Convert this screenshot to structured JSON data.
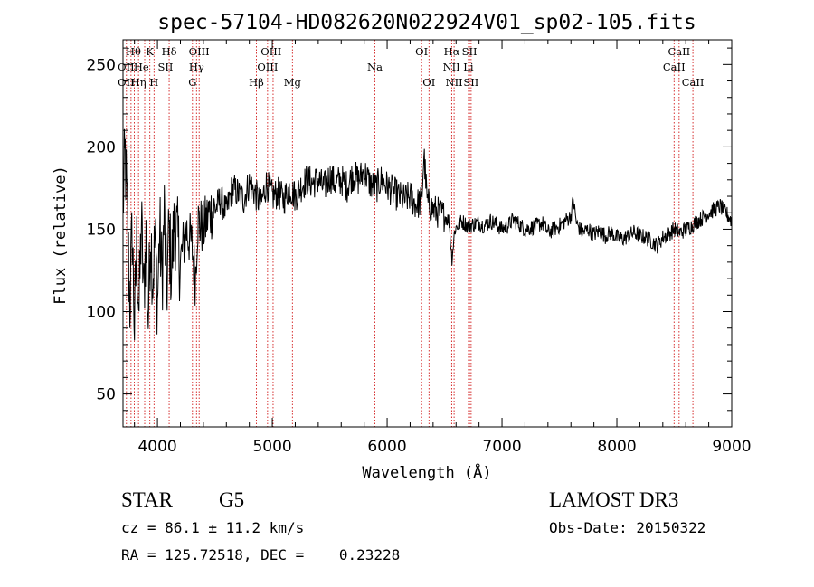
{
  "chart_data": {
    "type": "line",
    "title": "spec-57104-HD082620N022924V01_sp02-105.fits",
    "xlabel": "Wavelength (Å)",
    "ylabel": "Flux (relative)",
    "xlim": [
      3700,
      9000
    ],
    "ylim": [
      30,
      265
    ],
    "xticks": [
      4000,
      5000,
      6000,
      7000,
      8000,
      9000
    ],
    "yticks": [
      50,
      100,
      150,
      200,
      250
    ],
    "x_tick_labels": [
      "4000",
      "5000",
      "6000",
      "7000",
      "8000",
      "9000"
    ],
    "y_tick_labels": [
      "50",
      "100",
      "150",
      "200",
      "250"
    ],
    "grid": false,
    "series": [
      {
        "name": "flux",
        "color": "#000000",
        "points": [
          [
            3700,
            165
          ],
          [
            3720,
            195
          ],
          [
            3740,
            150
          ],
          [
            3760,
            105
          ],
          [
            3780,
            150
          ],
          [
            3800,
            90
          ],
          [
            3820,
            140
          ],
          [
            3840,
            100
          ],
          [
            3860,
            155
          ],
          [
            3880,
            110
          ],
          [
            3900,
            145
          ],
          [
            3920,
            95
          ],
          [
            3940,
            150
          ],
          [
            3960,
            120
          ],
          [
            3980,
            145
          ],
          [
            4000,
            105
          ],
          [
            4020,
            150
          ],
          [
            4040,
            120
          ],
          [
            4060,
            160
          ],
          [
            4080,
            110
          ],
          [
            4100,
            150
          ],
          [
            4120,
            125
          ],
          [
            4150,
            155
          ],
          [
            4200,
            130
          ],
          [
            4250,
            150
          ],
          [
            4300,
            140
          ],
          [
            4330,
            120
          ],
          [
            4350,
            155
          ],
          [
            4400,
            150
          ],
          [
            4450,
            160
          ],
          [
            4500,
            162
          ],
          [
            4550,
            168
          ],
          [
            4600,
            160
          ],
          [
            4650,
            175
          ],
          [
            4700,
            172
          ],
          [
            4750,
            168
          ],
          [
            4800,
            178
          ],
          [
            4850,
            172
          ],
          [
            4900,
            165
          ],
          [
            4950,
            178
          ],
          [
            5000,
            170
          ],
          [
            5050,
            172
          ],
          [
            5100,
            168
          ],
          [
            5150,
            175
          ],
          [
            5200,
            170
          ],
          [
            5250,
            176
          ],
          [
            5300,
            180
          ],
          [
            5350,
            178
          ],
          [
            5400,
            180
          ],
          [
            5450,
            175
          ],
          [
            5500,
            182
          ],
          [
            5550,
            178
          ],
          [
            5600,
            180
          ],
          [
            5650,
            176
          ],
          [
            5700,
            183
          ],
          [
            5750,
            180
          ],
          [
            5800,
            185
          ],
          [
            5850,
            178
          ],
          [
            5900,
            175
          ],
          [
            5950,
            180
          ],
          [
            6000,
            176
          ],
          [
            6050,
            173
          ],
          [
            6100,
            170
          ],
          [
            6150,
            168
          ],
          [
            6200,
            170
          ],
          [
            6250,
            165
          ],
          [
            6300,
            167
          ],
          [
            6320,
            196
          ],
          [
            6350,
            166
          ],
          [
            6400,
            162
          ],
          [
            6450,
            160
          ],
          [
            6500,
            158
          ],
          [
            6540,
            155
          ],
          [
            6563,
            132
          ],
          [
            6590,
            150
          ],
          [
            6650,
            155
          ],
          [
            6700,
            152
          ],
          [
            6750,
            153
          ],
          [
            6800,
            154
          ],
          [
            6850,
            152
          ],
          [
            6900,
            155
          ],
          [
            6950,
            153
          ],
          [
            7000,
            150
          ],
          [
            7050,
            152
          ],
          [
            7100,
            156
          ],
          [
            7150,
            153
          ],
          [
            7200,
            150
          ],
          [
            7250,
            151
          ],
          [
            7300,
            152
          ],
          [
            7350,
            154
          ],
          [
            7400,
            148
          ],
          [
            7450,
            150
          ],
          [
            7500,
            152
          ],
          [
            7550,
            155
          ],
          [
            7600,
            158
          ],
          [
            7620,
            168
          ],
          [
            7650,
            153
          ],
          [
            7700,
            148
          ],
          [
            7750,
            150
          ],
          [
            7800,
            147
          ],
          [
            7850,
            149
          ],
          [
            7900,
            146
          ],
          [
            7950,
            148
          ],
          [
            8000,
            145
          ],
          [
            8050,
            144
          ],
          [
            8100,
            146
          ],
          [
            8150,
            148
          ],
          [
            8200,
            146
          ],
          [
            8250,
            145
          ],
          [
            8300,
            143
          ],
          [
            8350,
            140
          ],
          [
            8400,
            145
          ],
          [
            8450,
            147
          ],
          [
            8500,
            150
          ],
          [
            8550,
            148
          ],
          [
            8600,
            150
          ],
          [
            8650,
            152
          ],
          [
            8700,
            155
          ],
          [
            8750,
            157
          ],
          [
            8800,
            160
          ],
          [
            8850,
            162
          ],
          [
            8900,
            164
          ],
          [
            8950,
            160
          ],
          [
            9000,
            155
          ]
        ]
      }
    ],
    "reference_lines": {
      "color": "#cc0000",
      "wavelengths": [
        3730,
        3770,
        3798,
        3835,
        3889,
        3934,
        3970,
        4102,
        4305,
        4340,
        4363,
        4861,
        4959,
        5007,
        5175,
        5893,
        6300,
        6364,
        6548,
        6563,
        6583,
        6708,
        6717,
        6731,
        8498,
        8542,
        8662
      ]
    },
    "line_labels": [
      {
        "text": "Hθ",
        "x": 3790,
        "row": 1
      },
      {
        "text": "K",
        "x": 3934,
        "row": 1
      },
      {
        "text": "Hδ",
        "x": 4102,
        "row": 1
      },
      {
        "text": "OIII",
        "x": 4363,
        "row": 1
      },
      {
        "text": "OIII",
        "x": 4990,
        "row": 1
      },
      {
        "text": "OI",
        "x": 6300,
        "row": 1
      },
      {
        "text": "Hα",
        "x": 6563,
        "row": 1
      },
      {
        "text": "SII",
        "x": 6717,
        "row": 1
      },
      {
        "text": "CaII",
        "x": 8542,
        "row": 1
      },
      {
        "text": "OII",
        "x": 3727,
        "row": 2
      },
      {
        "text": "He",
        "x": 3860,
        "row": 2
      },
      {
        "text": "SII",
        "x": 4070,
        "row": 2
      },
      {
        "text": "Hγ",
        "x": 4340,
        "row": 2
      },
      {
        "text": "OIII",
        "x": 4959,
        "row": 2
      },
      {
        "text": "Na",
        "x": 5893,
        "row": 2
      },
      {
        "text": "NII",
        "x": 6560,
        "row": 2
      },
      {
        "text": "Li",
        "x": 6708,
        "row": 2
      },
      {
        "text": "CaII",
        "x": 8498,
        "row": 2
      },
      {
        "text": "OII",
        "x": 3727,
        "row": 3
      },
      {
        "text": "Hη",
        "x": 3835,
        "row": 3
      },
      {
        "text": "H",
        "x": 3970,
        "row": 3
      },
      {
        "text": "G",
        "x": 4305,
        "row": 3
      },
      {
        "text": "Hβ",
        "x": 4861,
        "row": 3
      },
      {
        "text": "Mg",
        "x": 5175,
        "row": 3
      },
      {
        "text": "OI",
        "x": 6364,
        "row": 3
      },
      {
        "text": "NII",
        "x": 6583,
        "row": 3
      },
      {
        "text": "SII",
        "x": 6731,
        "row": 3
      },
      {
        "text": "CaII",
        "x": 8662,
        "row": 3
      }
    ]
  },
  "info": {
    "object_type": "STAR",
    "subclass": "G5",
    "cz": "cz = 86.1 ± 11.2 km/s",
    "coords": "RA = 125.72518, DEC =    0.23228",
    "survey": "LAMOST DR3",
    "obs_date": "Obs-Date: 20150322"
  }
}
